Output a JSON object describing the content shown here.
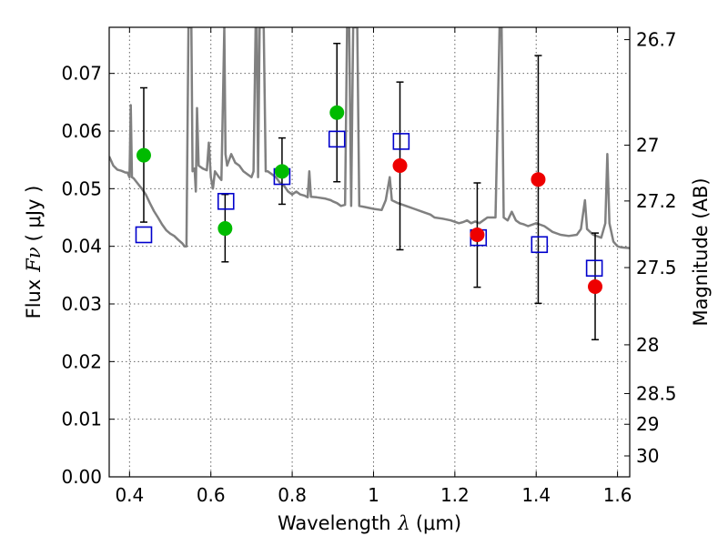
{
  "chart_data": {
    "type": "scatter",
    "xlabel": "Wavelength",
    "xlabel_symbol": "λ",
    "xlabel_unit": "(μm)",
    "ylabel": "Flux",
    "ylabel_symbol": "Fν",
    "ylabel_unit": "(  μJy )",
    "y2label": "Magnitude (AB)",
    "xlim": [
      0.35,
      1.63
    ],
    "ylim": [
      0.0,
      0.078
    ],
    "grid": true,
    "x_ticks": [
      0.4,
      0.6,
      0.8,
      1.0,
      1.2,
      1.4,
      1.6
    ],
    "x_tick_labels": [
      "0.4",
      "0.6",
      "0.8",
      "1",
      "1.2",
      "1.4",
      "1.6"
    ],
    "y_ticks": [
      0.0,
      0.01,
      0.02,
      0.03,
      0.04,
      0.05,
      0.06,
      0.07
    ],
    "y_tick_labels": [
      "0.00",
      "0.01",
      "0.02",
      "0.03",
      "0.04",
      "0.05",
      "0.06",
      "0.07"
    ],
    "y2_ticks": [
      {
        "mag": 26.7,
        "label": "26.7"
      },
      {
        "mag": 27.0,
        "label": "27"
      },
      {
        "mag": 27.2,
        "label": "27.2"
      },
      {
        "mag": 27.5,
        "label": "27.5"
      },
      {
        "mag": 28.0,
        "label": "28"
      },
      {
        "mag": 28.5,
        "label": "28.5"
      },
      {
        "mag": 29.0,
        "label": "29"
      },
      {
        "mag": 30.0,
        "label": "30"
      }
    ],
    "colors": {
      "model": "#808080",
      "errorbar": "#000000",
      "box": "#0000cc",
      "green": "#00bb00",
      "red": "#ee0000"
    },
    "series": [
      {
        "marker": "errorbar",
        "points": [
          {
            "x": 0.435,
            "y": 0.0558,
            "lo": 0.0442,
            "hi": 0.0675
          },
          {
            "x": 0.635,
            "y": 0.0431,
            "lo": 0.0373,
            "hi": 0.049
          },
          {
            "x": 0.775,
            "y": 0.053,
            "lo": 0.0473,
            "hi": 0.0588
          },
          {
            "x": 0.91,
            "y": 0.0632,
            "lo": 0.0512,
            "hi": 0.0752
          },
          {
            "x": 1.065,
            "y": 0.054,
            "lo": 0.0394,
            "hi": 0.0685
          },
          {
            "x": 1.255,
            "y": 0.042,
            "lo": 0.0329,
            "hi": 0.051
          },
          {
            "x": 1.405,
            "y": 0.0516,
            "lo": 0.0301,
            "hi": 0.0731
          },
          {
            "x": 1.545,
            "y": 0.033,
            "lo": 0.0238,
            "hi": 0.0423
          }
        ]
      },
      {
        "marker": "open-square",
        "points": [
          {
            "x": 0.435,
            "y": 0.042
          },
          {
            "x": 0.637,
            "y": 0.0478
          },
          {
            "x": 0.775,
            "y": 0.0521
          },
          {
            "x": 0.91,
            "y": 0.0586
          },
          {
            "x": 1.068,
            "y": 0.0582
          },
          {
            "x": 1.258,
            "y": 0.0415
          },
          {
            "x": 1.408,
            "y": 0.0403
          },
          {
            "x": 1.543,
            "y": 0.0362
          }
        ]
      },
      {
        "marker": "filled-circle-green",
        "points": [
          {
            "x": 0.435,
            "y": 0.0558
          },
          {
            "x": 0.635,
            "y": 0.0431
          },
          {
            "x": 0.775,
            "y": 0.053
          },
          {
            "x": 0.91,
            "y": 0.0632
          }
        ]
      },
      {
        "marker": "filled-circle-red",
        "points": [
          {
            "x": 1.065,
            "y": 0.054
          },
          {
            "x": 1.255,
            "y": 0.042
          },
          {
            "x": 1.405,
            "y": 0.0516
          },
          {
            "x": 1.545,
            "y": 0.033
          }
        ]
      },
      {
        "marker": "line",
        "points": [
          [
            0.35,
            0.0556
          ],
          [
            0.36,
            0.054
          ],
          [
            0.37,
            0.0533
          ],
          [
            0.38,
            0.0531
          ],
          [
            0.39,
            0.0528
          ],
          [
            0.395,
            0.0528
          ],
          [
            0.4,
            0.052
          ],
          [
            0.403,
            0.0645
          ],
          [
            0.406,
            0.052
          ],
          [
            0.41,
            0.0518
          ],
          [
            0.42,
            0.0509
          ],
          [
            0.43,
            0.05
          ],
          [
            0.44,
            0.049
          ],
          [
            0.45,
            0.0475
          ],
          [
            0.46,
            0.0461
          ],
          [
            0.47,
            0.045
          ],
          [
            0.48,
            0.0438
          ],
          [
            0.49,
            0.0428
          ],
          [
            0.5,
            0.0422
          ],
          [
            0.51,
            0.0418
          ],
          [
            0.52,
            0.0411
          ],
          [
            0.53,
            0.0405
          ],
          [
            0.535,
            0.04
          ],
          [
            0.54,
            0.04
          ],
          [
            0.545,
            0.078
          ],
          [
            0.552,
            0.078
          ],
          [
            0.555,
            0.053
          ],
          [
            0.56,
            0.0535
          ],
          [
            0.563,
            0.0495
          ],
          [
            0.566,
            0.064
          ],
          [
            0.57,
            0.054
          ],
          [
            0.58,
            0.0535
          ],
          [
            0.59,
            0.0532
          ],
          [
            0.595,
            0.058
          ],
          [
            0.6,
            0.052
          ],
          [
            0.605,
            0.05
          ],
          [
            0.61,
            0.053
          ],
          [
            0.62,
            0.052
          ],
          [
            0.626,
            0.0515
          ],
          [
            0.63,
            0.066
          ],
          [
            0.633,
            0.078
          ],
          [
            0.636,
            0.056
          ],
          [
            0.64,
            0.054
          ],
          [
            0.65,
            0.056
          ],
          [
            0.66,
            0.0545
          ],
          [
            0.67,
            0.054
          ],
          [
            0.68,
            0.053
          ],
          [
            0.69,
            0.0525
          ],
          [
            0.7,
            0.052
          ],
          [
            0.705,
            0.053
          ],
          [
            0.71,
            0.078
          ],
          [
            0.713,
            0.078
          ],
          [
            0.716,
            0.052
          ],
          [
            0.72,
            0.078
          ],
          [
            0.73,
            0.078
          ],
          [
            0.735,
            0.053
          ],
          [
            0.74,
            0.053
          ],
          [
            0.75,
            0.0525
          ],
          [
            0.76,
            0.052
          ],
          [
            0.77,
            0.051
          ],
          [
            0.78,
            0.0505
          ],
          [
            0.79,
            0.0495
          ],
          [
            0.8,
            0.049
          ],
          [
            0.81,
            0.0495
          ],
          [
            0.82,
            0.049
          ],
          [
            0.83,
            0.0488
          ],
          [
            0.838,
            0.0485
          ],
          [
            0.842,
            0.053
          ],
          [
            0.846,
            0.0486
          ],
          [
            0.86,
            0.0485
          ],
          [
            0.88,
            0.0483
          ],
          [
            0.895,
            0.048
          ],
          [
            0.9,
            0.0478
          ],
          [
            0.91,
            0.0475
          ],
          [
            0.92,
            0.047
          ],
          [
            0.93,
            0.0472
          ],
          [
            0.935,
            0.078
          ],
          [
            0.94,
            0.078
          ],
          [
            0.945,
            0.047
          ],
          [
            0.95,
            0.078
          ],
          [
            0.96,
            0.078
          ],
          [
            0.965,
            0.047
          ],
          [
            0.98,
            0.0468
          ],
          [
            1.0,
            0.0465
          ],
          [
            1.02,
            0.0463
          ],
          [
            1.03,
            0.048
          ],
          [
            1.04,
            0.052
          ],
          [
            1.045,
            0.048
          ],
          [
            1.06,
            0.0475
          ],
          [
            1.08,
            0.047
          ],
          [
            1.1,
            0.0465
          ],
          [
            1.12,
            0.046
          ],
          [
            1.14,
            0.0455
          ],
          [
            1.15,
            0.045
          ],
          [
            1.17,
            0.0448
          ],
          [
            1.19,
            0.0445
          ],
          [
            1.21,
            0.044
          ],
          [
            1.22,
            0.0442
          ],
          [
            1.23,
            0.0445
          ],
          [
            1.24,
            0.044
          ],
          [
            1.25,
            0.0443
          ],
          [
            1.26,
            0.044
          ],
          [
            1.27,
            0.0445
          ],
          [
            1.28,
            0.045
          ],
          [
            1.3,
            0.045
          ],
          [
            1.31,
            0.078
          ],
          [
            1.315,
            0.078
          ],
          [
            1.32,
            0.045
          ],
          [
            1.33,
            0.0445
          ],
          [
            1.34,
            0.046
          ],
          [
            1.35,
            0.0445
          ],
          [
            1.36,
            0.044
          ],
          [
            1.37,
            0.0438
          ],
          [
            1.38,
            0.0435
          ],
          [
            1.4,
            0.044
          ],
          [
            1.42,
            0.0435
          ],
          [
            1.44,
            0.0425
          ],
          [
            1.46,
            0.042
          ],
          [
            1.48,
            0.0418
          ],
          [
            1.5,
            0.042
          ],
          [
            1.51,
            0.043
          ],
          [
            1.52,
            0.048
          ],
          [
            1.525,
            0.043
          ],
          [
            1.54,
            0.042
          ],
          [
            1.56,
            0.0415
          ],
          [
            1.57,
            0.044
          ],
          [
            1.575,
            0.056
          ],
          [
            1.58,
            0.044
          ],
          [
            1.59,
            0.0408
          ],
          [
            1.6,
            0.04
          ],
          [
            1.61,
            0.0398
          ],
          [
            1.63,
            0.0397
          ]
        ]
      }
    ]
  }
}
